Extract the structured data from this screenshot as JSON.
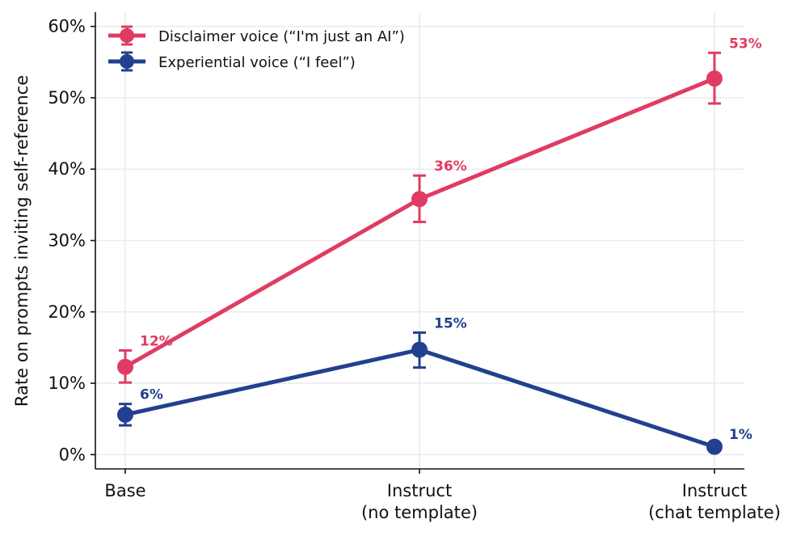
{
  "chart_data": {
    "type": "line",
    "categories": [
      [
        "Base"
      ],
      [
        "Instruct",
        "(no template)"
      ],
      [
        "Instruct",
        "(chat template)"
      ]
    ],
    "ylabel": "Rate on prompts inviting self-reference",
    "ylim": [
      -2,
      62
    ],
    "yticks": [
      0,
      10,
      20,
      30,
      40,
      50,
      60
    ],
    "ytick_labels": [
      "0%",
      "10%",
      "20%",
      "30%",
      "40%",
      "50%",
      "60%"
    ],
    "grid": true,
    "legend_position": "top-left",
    "series": [
      {
        "name": "Disclaimer voice  (“I'm just an AI”)",
        "color": "#e03c63",
        "values": [
          12.3,
          35.8,
          52.7
        ],
        "err_low": [
          10.1,
          32.6,
          49.2
        ],
        "err_high": [
          14.6,
          39.1,
          56.3
        ],
        "labels": [
          "12%",
          "36%",
          "53%"
        ]
      },
      {
        "name": "Experiential voice  (“I feel”)",
        "color": "#22408f",
        "values": [
          5.6,
          14.7,
          1.1
        ],
        "err_low": [
          4.1,
          12.2,
          0.7
        ],
        "err_high": [
          7.1,
          17.1,
          1.5
        ],
        "labels": [
          "6%",
          "15%",
          "1%"
        ]
      }
    ]
  }
}
